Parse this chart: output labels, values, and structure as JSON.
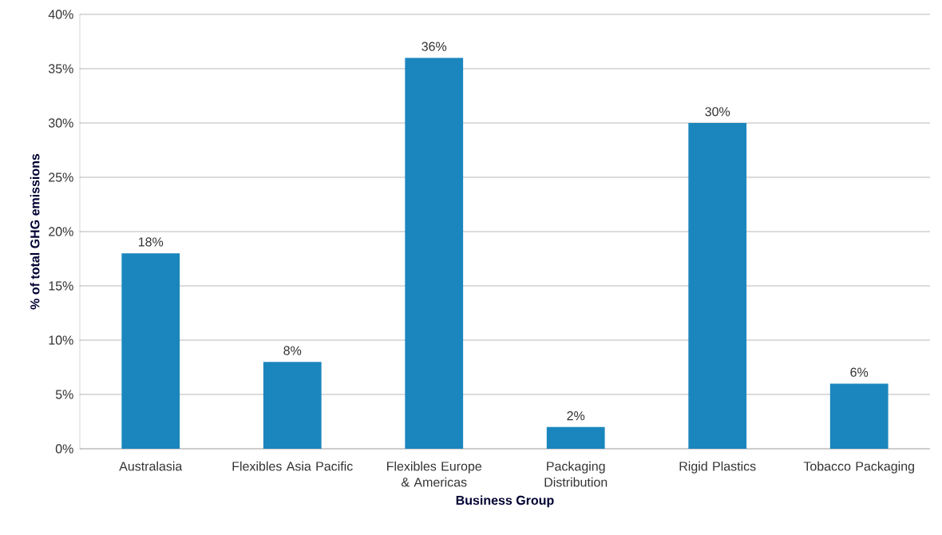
{
  "chart_data": {
    "type": "bar",
    "ylabel": "% of total GHG emissions",
    "xlabel": "Business Group",
    "categories": [
      "Australasia",
      "Flexibles Asia Pacific",
      "Flexibles Europe & Americas",
      "Packaging Distribution",
      "Rigid Plastics",
      "Tobacco Packaging"
    ],
    "values": [
      18,
      8,
      36,
      2,
      30,
      6
    ],
    "value_labels": [
      "18%",
      "8%",
      "36%",
      "2%",
      "30%",
      "6%"
    ],
    "color": "#1b86bd",
    "ylim": [
      0,
      40
    ],
    "yticks": [
      {
        "value": 0,
        "label": "0%"
      },
      {
        "value": 5,
        "label": "5%"
      },
      {
        "value": 10,
        "label": "10%"
      },
      {
        "value": 15,
        "label": "15%"
      },
      {
        "value": 20,
        "label": "20%"
      },
      {
        "value": 25,
        "label": "25%"
      },
      {
        "value": 30,
        "label": "30%"
      },
      {
        "value": 35,
        "label": "35%"
      },
      {
        "value": 40,
        "label": "40%"
      }
    ],
    "grid": "y"
  }
}
